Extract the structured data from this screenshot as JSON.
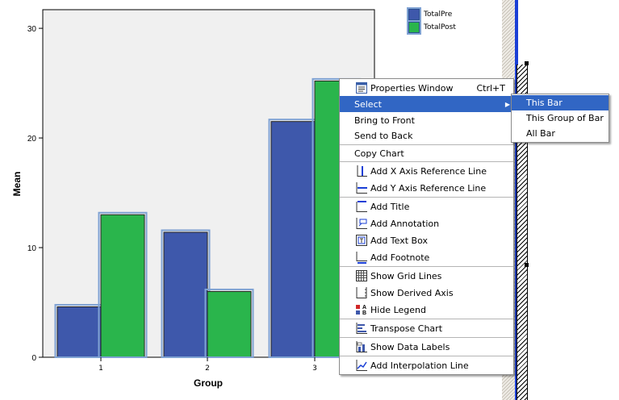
{
  "chart_data": {
    "type": "bar",
    "categories": [
      "1",
      "2",
      "3"
    ],
    "series": [
      {
        "name": "TotalPre",
        "values": [
          4.6,
          11.4,
          21.5
        ]
      },
      {
        "name": "TotalPost",
        "values": [
          13.0,
          6.0,
          25.2
        ]
      }
    ],
    "xlabel": "Group",
    "ylabel": "Mean",
    "ylim": [
      0,
      31.7
    ],
    "yticks": [
      "0",
      "10",
      "20",
      "30"
    ],
    "ytick_values": [
      0,
      10,
      20,
      30
    ],
    "grid": false,
    "legend_position": "top-right",
    "colors": {
      "TotalPre": "#3e58ab",
      "TotalPost": "#2ab54c",
      "plot_bg": "#f0f0f0",
      "bar_outline": "#7fa2d3"
    }
  },
  "context_menu": {
    "items": [
      {
        "label": "Properties Window",
        "shortcut": "Ctrl+T",
        "icon": "properties-window-icon"
      },
      {
        "label": "Select",
        "submenu": true,
        "highlighted": true
      },
      {
        "label": "Bring to Front"
      },
      {
        "label": "Send to Back"
      },
      {
        "label": "Copy Chart"
      },
      {
        "label": "Add X Axis Reference Line",
        "icon": "x-axis-reference-line-icon"
      },
      {
        "label": "Add Y Axis Reference Line",
        "icon": "y-axis-reference-line-icon"
      },
      {
        "label": "Add Title",
        "icon": "title-icon"
      },
      {
        "label": "Add Annotation",
        "icon": "annotation-icon"
      },
      {
        "label": "Add Text Box",
        "icon": "text-box-icon"
      },
      {
        "label": "Add Footnote",
        "icon": "footnote-icon"
      },
      {
        "label": "Show Grid Lines",
        "icon": "grid-lines-icon"
      },
      {
        "label": "Show Derived Axis",
        "icon": "derived-axis-icon"
      },
      {
        "label": "Hide Legend",
        "icon": "legend-icon"
      },
      {
        "label": "Transpose Chart",
        "icon": "transpose-chart-icon"
      },
      {
        "label": "Show Data Labels",
        "icon": "data-labels-icon"
      },
      {
        "label": "Add Interpolation Line",
        "icon": "interpolation-line-icon"
      }
    ]
  },
  "submenu": {
    "items": [
      {
        "label": "This Bar",
        "highlighted": true
      },
      {
        "label": "This Group of Bar"
      },
      {
        "label": "All Bar"
      }
    ]
  }
}
